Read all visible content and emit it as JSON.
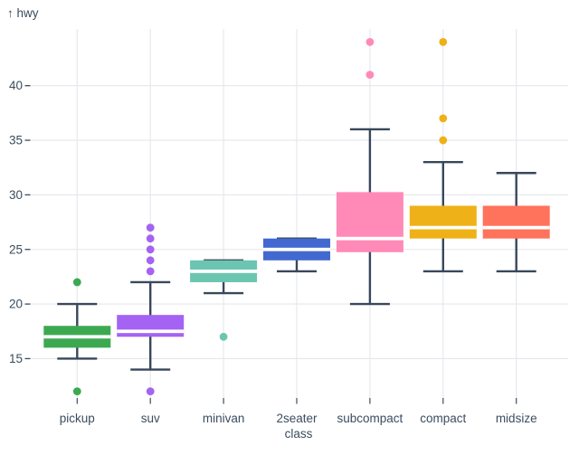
{
  "page": {
    "background_color": "#ffffff"
  },
  "chart_data": {
    "type": "boxplot",
    "title": "",
    "ylabel": "hwy",
    "ylabel_display": "↑ hwy",
    "xlabel": "class",
    "categories": [
      "pickup",
      "suv",
      "minivan",
      "2seater",
      "subcompact",
      "compact",
      "midsize"
    ],
    "y_ticks": [
      15,
      20,
      25,
      30,
      35,
      40
    ],
    "ylim": [
      11.5,
      44.5
    ],
    "grid": true,
    "legend": "none",
    "series": [
      {
        "category": "pickup",
        "color": "#3ca951",
        "whisker_low": 15,
        "q1": 16,
        "median": 17,
        "q3": 18,
        "whisker_high": 20,
        "outliers": [
          12,
          22
        ]
      },
      {
        "category": "suv",
        "color": "#a463f2",
        "whisker_low": 14,
        "q1": 17,
        "median": 17.5,
        "q3": 19,
        "whisker_high": 22,
        "outliers": [
          12,
          23,
          24,
          25,
          26,
          27
        ]
      },
      {
        "category": "minivan",
        "color": "#6cc5b0",
        "whisker_low": 21,
        "q1": 22,
        "median": 23,
        "q3": 24,
        "whisker_high": 24,
        "outliers": [
          17
        ]
      },
      {
        "category": "2seater",
        "color": "#4269d0",
        "whisker_low": 23,
        "q1": 24,
        "median": 25,
        "q3": 26,
        "whisker_high": 26,
        "outliers": []
      },
      {
        "category": "subcompact",
        "color": "#ff8ab7",
        "whisker_low": 20,
        "q1": 24.75,
        "median": 26,
        "q3": 30.25,
        "whisker_high": 36,
        "outliers": [
          41,
          44
        ]
      },
      {
        "category": "compact",
        "color": "#efb118",
        "whisker_low": 23,
        "q1": 26,
        "median": 27,
        "q3": 29,
        "whisker_high": 33,
        "outliers": [
          35,
          37,
          44
        ]
      },
      {
        "category": "midsize",
        "color": "#ff725c",
        "whisker_low": 23,
        "q1": 26,
        "median": 27,
        "q3": 29,
        "whisker_high": 32,
        "outliers": []
      }
    ],
    "colors": {
      "axis_text": "#3b4c5e",
      "grid_line": "#e4e7eb",
      "whisker": "#39475c",
      "median_line": "#ffffff"
    }
  }
}
